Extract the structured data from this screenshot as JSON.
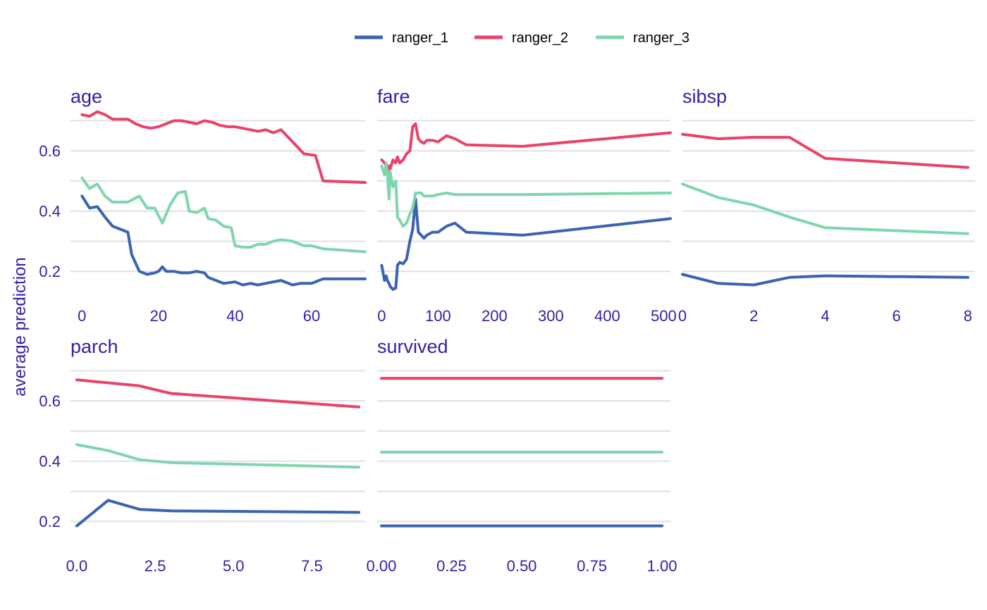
{
  "chart_data": {
    "type": "line",
    "ylabel": "average prediction",
    "legend": {
      "placement": "top",
      "entries": [
        {
          "name": "ranger_1",
          "color": "#3b63b2"
        },
        {
          "name": "ranger_2",
          "color": "#e8436a"
        },
        {
          "name": "ranger_3",
          "color": "#7fd6ae"
        }
      ]
    },
    "grid": true,
    "ylim": [
      0.1,
      0.75
    ],
    "yticks": [
      0.2,
      0.4,
      0.6
    ],
    "ytick_labels": [
      "0.2",
      "0.4",
      "0.6"
    ],
    "panels": [
      {
        "title": "age",
        "xlim": [
          -3,
          74
        ],
        "xticks": [
          0,
          20,
          40,
          60
        ],
        "xtick_labels": [
          "0",
          "20",
          "40",
          "60"
        ],
        "series": [
          {
            "name": "ranger_1",
            "x": [
              0,
              2,
              4,
              6,
              8,
              10,
              12,
              13,
              15,
              17,
              19,
              20,
              21,
              22,
              24,
              26,
              28,
              30,
              32,
              33,
              35,
              37,
              40,
              42,
              44,
              46,
              48,
              50,
              52,
              55,
              57,
              60,
              63,
              74
            ],
            "y": [
              0.45,
              0.41,
              0.415,
              0.38,
              0.35,
              0.34,
              0.33,
              0.255,
              0.2,
              0.19,
              0.195,
              0.2,
              0.215,
              0.2,
              0.2,
              0.195,
              0.195,
              0.2,
              0.195,
              0.18,
              0.17,
              0.16,
              0.165,
              0.155,
              0.16,
              0.155,
              0.16,
              0.165,
              0.17,
              0.155,
              0.16,
              0.16,
              0.175,
              0.175
            ]
          },
          {
            "name": "ranger_2",
            "x": [
              0,
              2,
              4,
              6,
              8,
              10,
              12,
              14,
              16,
              18,
              20,
              22,
              24,
              26,
              28,
              30,
              32,
              34,
              36,
              38,
              40,
              42,
              44,
              46,
              48,
              50,
              52,
              55,
              58,
              61,
              63,
              74
            ],
            "y": [
              0.72,
              0.715,
              0.73,
              0.72,
              0.705,
              0.705,
              0.705,
              0.69,
              0.68,
              0.675,
              0.68,
              0.69,
              0.7,
              0.7,
              0.695,
              0.69,
              0.7,
              0.695,
              0.685,
              0.68,
              0.68,
              0.675,
              0.67,
              0.665,
              0.67,
              0.66,
              0.67,
              0.63,
              0.59,
              0.585,
              0.5,
              0.495
            ]
          },
          {
            "name": "ranger_3",
            "x": [
              0,
              2,
              4,
              6,
              8,
              10,
              12,
              15,
              17,
              19,
              21,
              23,
              25,
              27,
              28,
              30,
              32,
              33,
              35,
              37,
              39,
              40,
              42,
              44,
              46,
              48,
              50,
              52,
              55,
              58,
              60,
              63,
              74
            ],
            "y": [
              0.51,
              0.475,
              0.49,
              0.45,
              0.43,
              0.43,
              0.43,
              0.45,
              0.41,
              0.41,
              0.36,
              0.42,
              0.46,
              0.465,
              0.4,
              0.395,
              0.41,
              0.375,
              0.37,
              0.35,
              0.345,
              0.285,
              0.28,
              0.28,
              0.29,
              0.29,
              0.3,
              0.305,
              0.3,
              0.285,
              0.285,
              0.275,
              0.265
            ]
          }
        ]
      },
      {
        "title": "fare",
        "xlim": [
          -8,
          512
        ],
        "xticks": [
          0,
          100,
          200,
          300,
          400,
          500
        ],
        "xtick_labels": [
          "0",
          "100",
          "200",
          "300",
          "400",
          "500"
        ],
        "series": [
          {
            "name": "ranger_1",
            "x": [
              0,
              5,
              8,
              10,
              13,
              15,
              20,
              25,
              28,
              32,
              38,
              44,
              50,
              55,
              60,
              65,
              70,
              75,
              80,
              90,
              100,
              115,
              130,
              150,
              250,
              512
            ],
            "y": [
              0.22,
              0.17,
              0.185,
              0.17,
              0.16,
              0.15,
              0.14,
              0.145,
              0.22,
              0.23,
              0.225,
              0.24,
              0.3,
              0.34,
              0.44,
              0.33,
              0.32,
              0.31,
              0.32,
              0.33,
              0.33,
              0.35,
              0.36,
              0.33,
              0.32,
              0.375
            ]
          },
          {
            "name": "ranger_2",
            "x": [
              0,
              5,
              8,
              10,
              13,
              15,
              20,
              25,
              28,
              32,
              38,
              44,
              50,
              55,
              60,
              65,
              70,
              75,
              80,
              90,
              100,
              115,
              130,
              150,
              250,
              512
            ],
            "y": [
              0.57,
              0.56,
              0.55,
              0.53,
              0.55,
              0.54,
              0.57,
              0.56,
              0.58,
              0.56,
              0.57,
              0.59,
              0.6,
              0.68,
              0.69,
              0.64,
              0.63,
              0.625,
              0.635,
              0.635,
              0.63,
              0.65,
              0.64,
              0.62,
              0.615,
              0.66
            ]
          },
          {
            "name": "ranger_3",
            "x": [
              0,
              5,
              8,
              10,
              13,
              15,
              20,
              25,
              28,
              32,
              38,
              44,
              50,
              55,
              60,
              65,
              70,
              75,
              80,
              90,
              100,
              115,
              130,
              150,
              250,
              512
            ],
            "y": [
              0.55,
              0.52,
              0.56,
              0.53,
              0.44,
              0.53,
              0.48,
              0.5,
              0.38,
              0.37,
              0.35,
              0.36,
              0.39,
              0.41,
              0.46,
              0.46,
              0.46,
              0.45,
              0.45,
              0.45,
              0.455,
              0.46,
              0.455,
              0.455,
              0.455,
              0.46
            ]
          }
        ]
      },
      {
        "title": "sibsp",
        "xlim": [
          0,
          8.2
        ],
        "xticks": [
          0,
          2,
          4,
          6,
          8
        ],
        "xtick_labels": [
          "0",
          "2",
          "4",
          "6",
          "8"
        ],
        "series": [
          {
            "name": "ranger_1",
            "x": [
              0,
              1,
              2,
              3,
              4,
              8
            ],
            "y": [
              0.19,
              0.16,
              0.155,
              0.18,
              0.185,
              0.18
            ]
          },
          {
            "name": "ranger_2",
            "x": [
              0,
              1,
              2,
              3,
              4,
              8
            ],
            "y": [
              0.655,
              0.64,
              0.645,
              0.645,
              0.575,
              0.545
            ]
          },
          {
            "name": "ranger_3",
            "x": [
              0,
              1,
              2,
              3,
              4,
              8
            ],
            "y": [
              0.49,
              0.445,
              0.42,
              0.38,
              0.345,
              0.325
            ]
          }
        ]
      },
      {
        "title": "parch",
        "xlim": [
          -0.2,
          9.2
        ],
        "xticks": [
          0,
          2.5,
          5,
          7.5
        ],
        "xtick_labels": [
          "0.0",
          "2.5",
          "5.0",
          "7.5"
        ],
        "series": [
          {
            "name": "ranger_1",
            "x": [
              0,
              1,
              2,
              3,
              9
            ],
            "y": [
              0.185,
              0.27,
              0.24,
              0.235,
              0.23
            ]
          },
          {
            "name": "ranger_2",
            "x": [
              0,
              1,
              2,
              3,
              9
            ],
            "y": [
              0.67,
              0.66,
              0.65,
              0.625,
              0.58
            ]
          },
          {
            "name": "ranger_3",
            "x": [
              0,
              1,
              2,
              3,
              9
            ],
            "y": [
              0.455,
              0.435,
              0.405,
              0.395,
              0.38
            ]
          }
        ]
      },
      {
        "title": "survived",
        "xlim": [
          -0.015,
          1.03
        ],
        "xticks": [
          0,
          0.25,
          0.5,
          0.75,
          1.0
        ],
        "xtick_labels": [
          "0.00",
          "0.25",
          "0.50",
          "0.75",
          "1.00"
        ],
        "series": [
          {
            "name": "ranger_1",
            "x": [
              0,
              1
            ],
            "y": [
              0.185,
              0.185
            ]
          },
          {
            "name": "ranger_2",
            "x": [
              0,
              1
            ],
            "y": [
              0.675,
              0.675
            ]
          },
          {
            "name": "ranger_3",
            "x": [
              0,
              1
            ],
            "y": [
              0.43,
              0.43
            ]
          }
        ]
      }
    ]
  }
}
